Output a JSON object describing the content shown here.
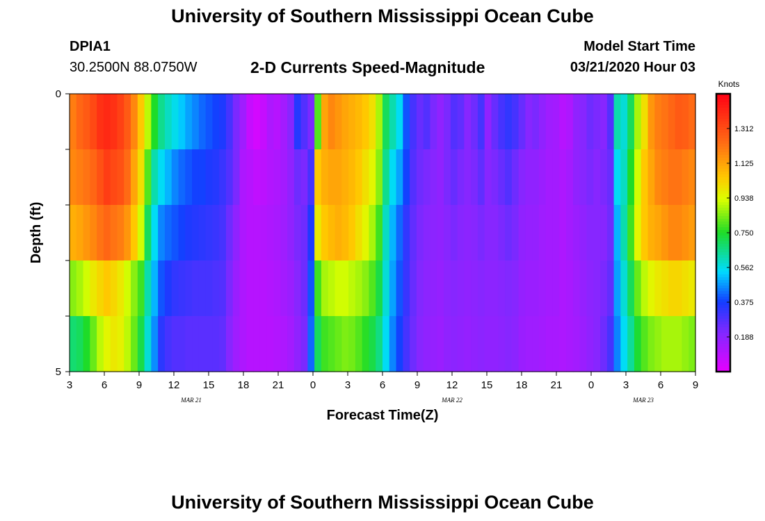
{
  "header": {
    "title": "University of Southern Mississippi Ocean Cube",
    "station_id": "DPIA1",
    "station_coords": "30.2500N 88.0750W",
    "subtitle": "2-D Currents Speed-Magnitude",
    "model_label": "Model Start Time",
    "model_time": "03/21/2020 Hour 03"
  },
  "footer": {
    "title": "University of Southern Mississippi Ocean Cube"
  },
  "chart_data": {
    "type": "heatmap",
    "title": "2-D Currents Speed-Magnitude",
    "xlabel": "Forecast Time(Z)",
    "ylabel": "Depth (ft)",
    "x_ticks": [
      "3",
      "6",
      "9",
      "12",
      "15",
      "18",
      "21",
      "0",
      "3",
      "6",
      "9",
      "12",
      "15",
      "18",
      "21",
      "0",
      "3",
      "6",
      "9"
    ],
    "date_labels": [
      {
        "label": "MAR 21",
        "hour_offset": 10.5
      },
      {
        "label": "MAR 22",
        "hour_offset": 33
      },
      {
        "label": "MAR 23",
        "hour_offset": 49.5
      }
    ],
    "x_range_hours": [
      0,
      54
    ],
    "y_ticks": [
      "0",
      "5"
    ],
    "ylim": [
      0,
      5
    ],
    "colorbar": {
      "label": "Knots",
      "ticks": [
        "1.312",
        "1.125",
        "0.938",
        "0.750",
        "0.562",
        "0.375",
        "0.188"
      ],
      "vmin": 0.0,
      "vmax": 1.5
    },
    "depth_levels": 5,
    "time_step_hours": 1,
    "values": [
      [
        1.2,
        1.25,
        1.28,
        1.32,
        1.38,
        1.4,
        1.38,
        1.34,
        1.28,
        1.18,
        1.05,
        0.9,
        0.75,
        0.65,
        0.6,
        0.56,
        0.52,
        0.48,
        0.45,
        0.42,
        0.4,
        0.38,
        0.36,
        0.3,
        0.22,
        0.15,
        0.07,
        0.04,
        0.07,
        0.12,
        0.1,
        0.14,
        0.2,
        0.35,
        0.28,
        0.22,
        0.8,
        1.12,
        1.18,
        1.15,
        1.12,
        1.1,
        1.08,
        1.05,
        1.0,
        0.88,
        0.7,
        0.62,
        0.55,
        0.4,
        0.3,
        0.25,
        0.28,
        0.22,
        0.18,
        0.22,
        0.28,
        0.26,
        0.2,
        0.24,
        0.3,
        0.18,
        0.25,
        0.3,
        0.33,
        0.3,
        0.25,
        0.2,
        0.22,
        0.18,
        0.15,
        0.14,
        0.1,
        0.12,
        0.18,
        0.2,
        0.24,
        0.22,
        0.2,
        0.28,
        0.62,
        0.58,
        0.7,
        0.88,
        1.0,
        1.15,
        1.2,
        1.22,
        1.25,
        1.28,
        1.27,
        1.24
      ],
      [
        1.18,
        1.2,
        1.22,
        1.25,
        1.3,
        1.35,
        1.32,
        1.3,
        1.24,
        1.12,
        1.0,
        0.8,
        0.62,
        0.55,
        0.5,
        0.45,
        0.42,
        0.4,
        0.38,
        0.38,
        0.36,
        0.35,
        0.32,
        0.28,
        0.22,
        0.12,
        0.1,
        0.08,
        0.09,
        0.11,
        0.12,
        0.14,
        0.18,
        0.24,
        0.22,
        0.3,
        1.05,
        1.1,
        1.12,
        1.12,
        1.1,
        1.08,
        1.05,
        1.0,
        0.95,
        0.85,
        0.65,
        0.55,
        0.48,
        0.38,
        0.28,
        0.24,
        0.22,
        0.2,
        0.18,
        0.22,
        0.25,
        0.22,
        0.2,
        0.22,
        0.26,
        0.2,
        0.22,
        0.25,
        0.28,
        0.24,
        0.2,
        0.18,
        0.18,
        0.16,
        0.14,
        0.14,
        0.12,
        0.14,
        0.18,
        0.2,
        0.22,
        0.2,
        0.22,
        0.25,
        0.55,
        0.6,
        0.75,
        0.92,
        1.05,
        1.12,
        1.18,
        1.2,
        1.22,
        1.22,
        1.2,
        1.18
      ],
      [
        1.1,
        1.12,
        1.15,
        1.18,
        1.22,
        1.25,
        1.22,
        1.2,
        1.15,
        1.05,
        0.92,
        0.7,
        0.55,
        0.45,
        0.42,
        0.4,
        0.38,
        0.36,
        0.35,
        0.34,
        0.33,
        0.32,
        0.3,
        0.24,
        0.18,
        0.12,
        0.1,
        0.1,
        0.11,
        0.12,
        0.13,
        0.15,
        0.18,
        0.22,
        0.24,
        0.36,
        0.98,
        1.05,
        1.08,
        1.1,
        1.08,
        1.05,
        1.0,
        0.95,
        0.88,
        0.78,
        0.6,
        0.5,
        0.42,
        0.33,
        0.26,
        0.22,
        0.2,
        0.19,
        0.18,
        0.2,
        0.22,
        0.2,
        0.19,
        0.2,
        0.22,
        0.2,
        0.2,
        0.22,
        0.24,
        0.22,
        0.18,
        0.17,
        0.17,
        0.15,
        0.14,
        0.14,
        0.12,
        0.14,
        0.16,
        0.18,
        0.2,
        0.2,
        0.2,
        0.24,
        0.5,
        0.62,
        0.78,
        0.95,
        1.05,
        1.1,
        1.12,
        1.15,
        1.18,
        1.18,
        1.16,
        1.14
      ],
      [
        0.85,
        0.88,
        0.92,
        0.98,
        1.02,
        1.05,
        1.02,
        0.98,
        0.92,
        0.85,
        0.78,
        0.62,
        0.5,
        0.4,
        0.36,
        0.33,
        0.32,
        0.31,
        0.3,
        0.3,
        0.3,
        0.29,
        0.28,
        0.22,
        0.16,
        0.12,
        0.1,
        0.1,
        0.1,
        0.11,
        0.12,
        0.14,
        0.16,
        0.2,
        0.24,
        0.4,
        0.78,
        0.88,
        0.9,
        0.92,
        0.92,
        0.9,
        0.88,
        0.85,
        0.8,
        0.72,
        0.58,
        0.48,
        0.4,
        0.32,
        0.25,
        0.21,
        0.19,
        0.18,
        0.17,
        0.19,
        0.2,
        0.19,
        0.18,
        0.19,
        0.2,
        0.19,
        0.19,
        0.2,
        0.21,
        0.2,
        0.17,
        0.16,
        0.16,
        0.15,
        0.14,
        0.14,
        0.12,
        0.13,
        0.15,
        0.17,
        0.19,
        0.2,
        0.22,
        0.26,
        0.48,
        0.58,
        0.7,
        0.82,
        0.9,
        0.95,
        0.98,
        1.0,
        1.02,
        1.02,
        1.0,
        0.98
      ],
      [
        0.68,
        0.7,
        0.75,
        0.82,
        0.9,
        0.95,
        0.98,
        0.96,
        0.9,
        0.82,
        0.72,
        0.58,
        0.46,
        0.34,
        0.3,
        0.28,
        0.28,
        0.27,
        0.27,
        0.27,
        0.27,
        0.27,
        0.26,
        0.2,
        0.15,
        0.12,
        0.1,
        0.1,
        0.1,
        0.1,
        0.11,
        0.12,
        0.14,
        0.18,
        0.22,
        0.42,
        0.7,
        0.78,
        0.8,
        0.82,
        0.84,
        0.83,
        0.8,
        0.76,
        0.72,
        0.66,
        0.55,
        0.45,
        0.38,
        0.3,
        0.24,
        0.2,
        0.18,
        0.17,
        0.16,
        0.18,
        0.19,
        0.18,
        0.17,
        0.18,
        0.19,
        0.18,
        0.18,
        0.19,
        0.2,
        0.19,
        0.16,
        0.15,
        0.15,
        0.14,
        0.13,
        0.13,
        0.12,
        0.13,
        0.14,
        0.16,
        0.18,
        0.2,
        0.24,
        0.3,
        0.45,
        0.55,
        0.64,
        0.74,
        0.8,
        0.84,
        0.86,
        0.88,
        0.88,
        0.88,
        0.86,
        0.84
      ]
    ]
  }
}
